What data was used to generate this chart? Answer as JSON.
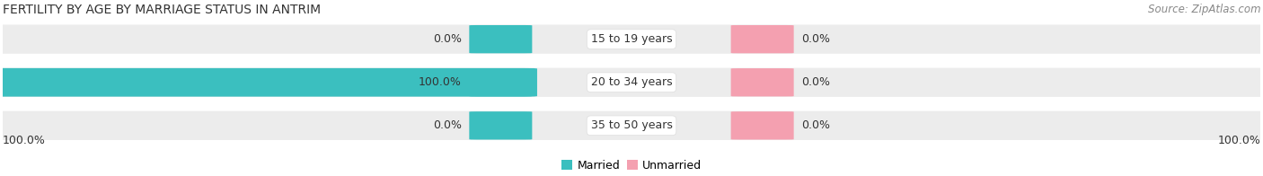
{
  "title": "FERTILITY BY AGE BY MARRIAGE STATUS IN ANTRIM",
  "source": "Source: ZipAtlas.com",
  "categories": [
    "15 to 19 years",
    "20 to 34 years",
    "35 to 50 years"
  ],
  "married_values": [
    0.0,
    100.0,
    0.0
  ],
  "unmarried_values": [
    0.0,
    0.0,
    0.0
  ],
  "married_color": "#3bbfbf",
  "unmarried_color": "#f4a0b0",
  "bar_bg_color": "#e8e8e8",
  "label_left_married": [
    "0.0%",
    "100.0%",
    "0.0%"
  ],
  "label_right_unmarried": [
    "0.0%",
    "0.0%",
    "0.0%"
  ],
  "bottom_left": "100.0%",
  "bottom_right": "100.0%",
  "title_fontsize": 10,
  "source_fontsize": 8.5,
  "label_fontsize": 9,
  "legend_fontsize": 9,
  "background_color": "#ffffff",
  "bar_bg_color_light": "#efefef"
}
